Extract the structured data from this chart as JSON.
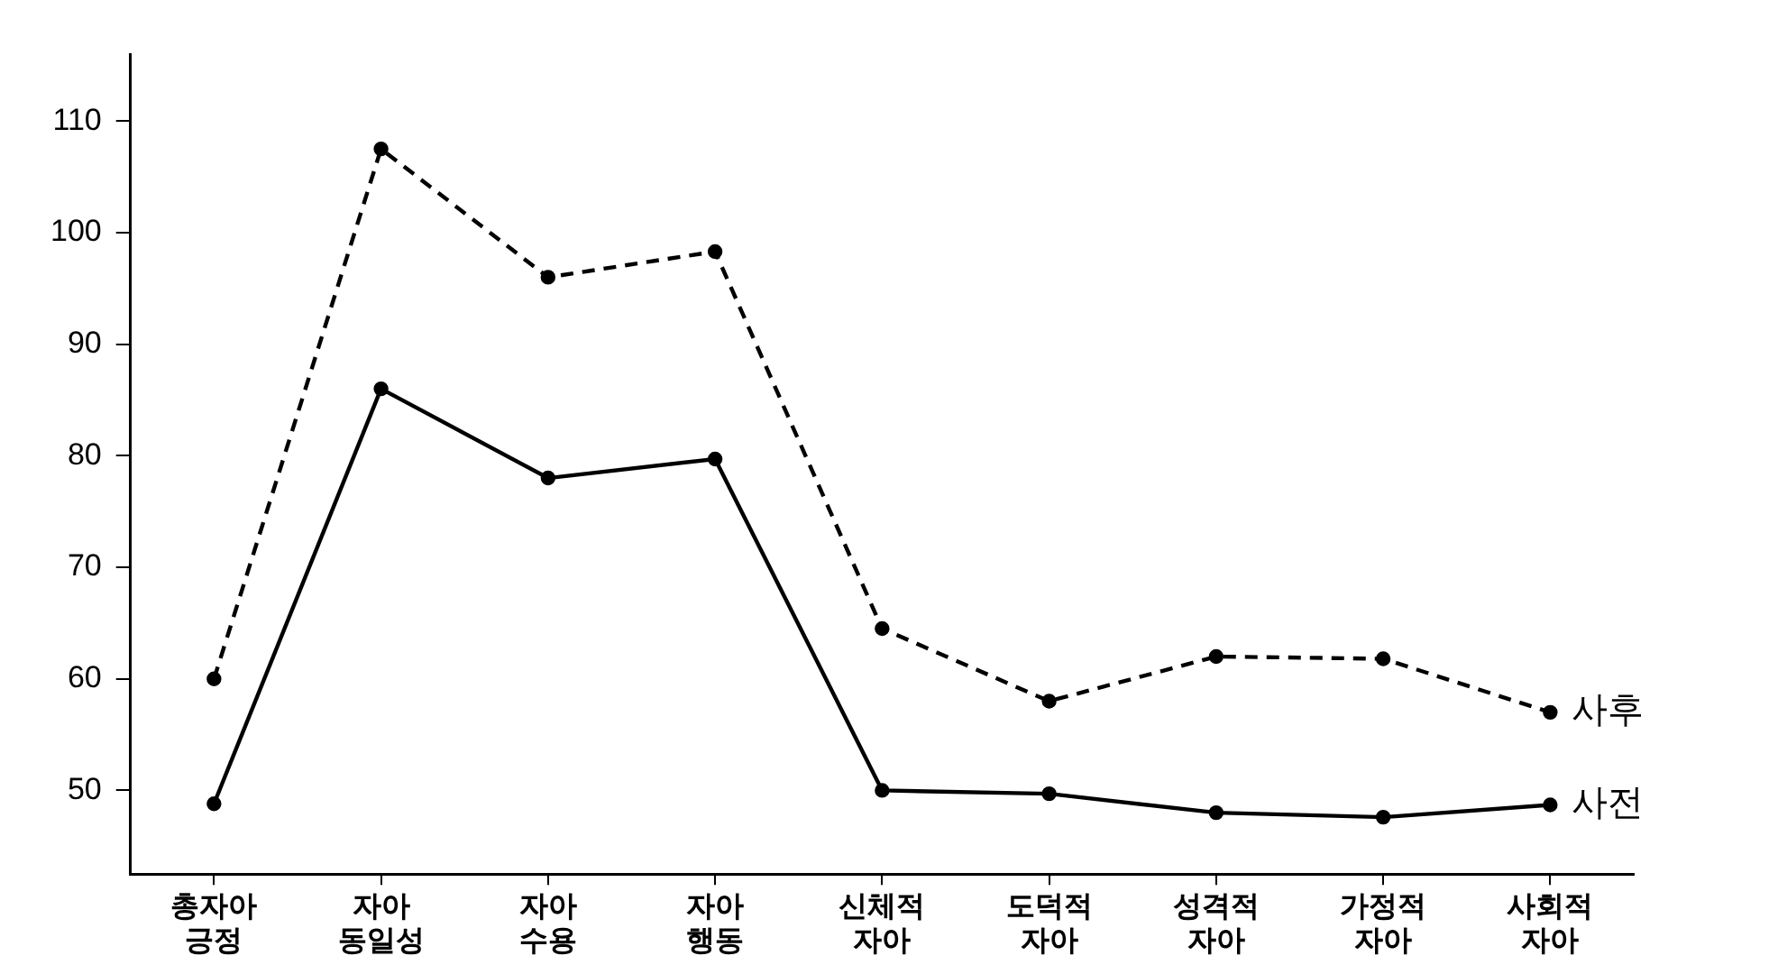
{
  "chart_data": {
    "type": "line",
    "categories": [
      "총자아 긍정",
      "자아 동일성",
      "자아 수용",
      "자아 행동",
      "신체적 자아",
      "도덕적 자아",
      "성격적 자아",
      "가정적 자아",
      "사회적 자아"
    ],
    "series": [
      {
        "name": "사후",
        "color": "#000000",
        "line_style": "dashed",
        "values": [
          60,
          107.5,
          96,
          98.3,
          64.5,
          58,
          62,
          61.8,
          57
        ]
      },
      {
        "name": "사전",
        "color": "#000000",
        "line_style": "solid",
        "values": [
          48.8,
          86,
          78,
          79.7,
          50,
          49.7,
          48,
          47.6,
          48.7
        ]
      }
    ],
    "ylim": [
      42.5,
      116
    ],
    "yticks": [
      50,
      60,
      70,
      80,
      90,
      100,
      110
    ],
    "grid": false,
    "legend": false,
    "marker": "circle"
  }
}
